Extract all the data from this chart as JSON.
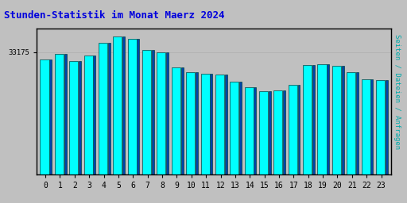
{
  "title": "Stunden-Statistik im Monat Maerz 2024",
  "title_color": "#0000DD",
  "ylabel": "Seiten / Dateien / Anfragen",
  "ylabel_color": "#00AAAA",
  "ytick_label": "33175",
  "background_color": "#C0C0C0",
  "bar_fill_color": "#00FFFF",
  "bar_dark_color": "#0044AA",
  "bar_edge_color": "#004444",
  "hours": [
    0,
    1,
    2,
    3,
    4,
    5,
    6,
    7,
    8,
    9,
    10,
    11,
    12,
    13,
    14,
    15,
    16,
    17,
    18,
    19,
    20,
    21,
    22,
    23
  ],
  "values": [
    33050,
    33150,
    33020,
    33120,
    33350,
    33450,
    33420,
    33220,
    33180,
    32900,
    32820,
    32800,
    32780,
    32650,
    32560,
    32480,
    32500,
    32600,
    32950,
    32960,
    32930,
    32820,
    32700,
    32680
  ],
  "ymin": 31000,
  "ymax": 33600,
  "ytick_val": 33175,
  "figsize": [
    5.12,
    2.56
  ],
  "dpi": 100
}
